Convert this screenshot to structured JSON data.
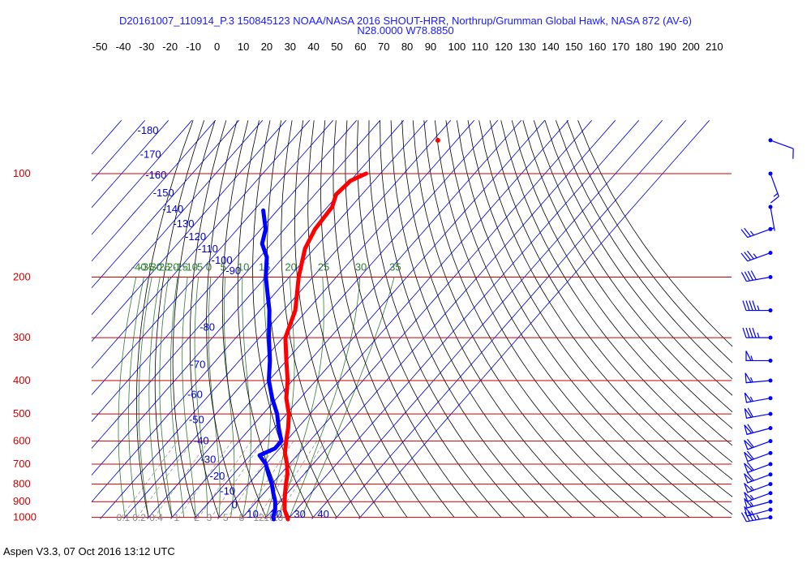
{
  "header": {
    "title": "D20161007_110914_P.3 150845123 NOAA/NASA 2016 SHOUT-HRR, Northrup/Grumman Global Hawk, NASA 872 (AV-6)",
    "location": "N28.0000 W78.8850"
  },
  "footer": {
    "text": "Aspen V3.3, 07 Oct 2016  13:12 UTC"
  },
  "colors": {
    "isobar": "#cc0000",
    "isotherm": "#0000cc",
    "dry_adiabat": "#000000",
    "moist_adiabat": "#2e7d32",
    "mixing_ratio": "#999999",
    "temperature": "#ff0000",
    "dewpoint": "#0000ff",
    "wind_barb": "#0000ff"
  },
  "chart_data": {
    "type": "line",
    "subtype": "skew-T log-p",
    "temperature_ticks": [
      "-50",
      "-40",
      "-30",
      "-20",
      "-10",
      "0",
      "10",
      "20",
      "30",
      "40",
      "50",
      "60",
      "70",
      "80",
      "90",
      "100",
      "110",
      "120",
      "130",
      "140",
      "150",
      "160",
      "170",
      "180",
      "190",
      "200",
      "210"
    ],
    "isotherm_labels": [
      "-180",
      "-170",
      "-160",
      "-150",
      "-140",
      "-130",
      "-120",
      "-110",
      "-100",
      "-90",
      "-80",
      "-70",
      "-60",
      "-50",
      "-40",
      "-30",
      "-20",
      "-10",
      "0",
      "10",
      "20",
      "30",
      "40"
    ],
    "pressure_labels": [
      "100",
      "200",
      "300",
      "400",
      "500",
      "600",
      "700",
      "800",
      "900",
      "1000"
    ],
    "moist_adiabat_labels": [
      "-40",
      "-35",
      "-30",
      "-25",
      "-20",
      "-15",
      "-10",
      "-5",
      "0",
      "5",
      "10",
      "15",
      "20",
      "25",
      "30",
      "35"
    ],
    "mixing_ratio_labels": [
      "0.1",
      "0.2",
      "0.4",
      "1",
      "2",
      "3",
      "5",
      "8",
      "12",
      "16",
      "20"
    ],
    "series": [
      {
        "name": "temperature",
        "points": [
          {
            "p": 100,
            "t": -66
          },
          {
            "p": 105,
            "t": -70
          },
          {
            "p": 115,
            "t": -71
          },
          {
            "p": 125,
            "t": -68
          },
          {
            "p": 145,
            "t": -67
          },
          {
            "p": 165,
            "t": -64
          },
          {
            "p": 200,
            "t": -56
          },
          {
            "p": 250,
            "t": -45
          },
          {
            "p": 300,
            "t": -39
          },
          {
            "p": 350,
            "t": -30
          },
          {
            "p": 400,
            "t": -22
          },
          {
            "p": 450,
            "t": -16
          },
          {
            "p": 500,
            "t": -9
          },
          {
            "p": 550,
            "t": -4
          },
          {
            "p": 600,
            "t": 0
          },
          {
            "p": 650,
            "t": 4
          },
          {
            "p": 700,
            "t": 9
          },
          {
            "p": 750,
            "t": 13
          },
          {
            "p": 800,
            "t": 16
          },
          {
            "p": 850,
            "t": 19
          },
          {
            "p": 900,
            "t": 22
          },
          {
            "p": 950,
            "t": 25
          },
          {
            "p": 1000,
            "t": 29
          },
          {
            "p": 1013,
            "t": 30
          }
        ]
      },
      {
        "name": "dewpoint",
        "points": [
          {
            "p": 128,
            "t": -96
          },
          {
            "p": 145,
            "t": -88
          },
          {
            "p": 160,
            "t": -84
          },
          {
            "p": 175,
            "t": -77
          },
          {
            "p": 200,
            "t": -70
          },
          {
            "p": 250,
            "t": -56
          },
          {
            "p": 300,
            "t": -46
          },
          {
            "p": 350,
            "t": -37
          },
          {
            "p": 400,
            "t": -30
          },
          {
            "p": 450,
            "t": -22
          },
          {
            "p": 500,
            "t": -14
          },
          {
            "p": 550,
            "t": -8
          },
          {
            "p": 600,
            "t": -2
          },
          {
            "p": 630,
            "t": -2
          },
          {
            "p": 660,
            "t": -6
          },
          {
            "p": 700,
            "t": 0
          },
          {
            "p": 750,
            "t": 5
          },
          {
            "p": 800,
            "t": 10
          },
          {
            "p": 850,
            "t": 14
          },
          {
            "p": 900,
            "t": 18
          },
          {
            "p": 950,
            "t": 21
          },
          {
            "p": 1000,
            "t": 23
          },
          {
            "p": 1013,
            "t": 24
          }
        ]
      }
    ],
    "top_point": {
      "p": 80,
      "t": -48
    },
    "winds": [
      {
        "p": 80,
        "dir": 110,
        "spd": 10
      },
      {
        "p": 100,
        "dir": 160,
        "spd": 15
      },
      {
        "p": 125,
        "dir": 170,
        "spd": 5
      },
      {
        "p": 145,
        "dir": 250,
        "spd": 25
      },
      {
        "p": 170,
        "dir": 250,
        "spd": 35
      },
      {
        "p": 200,
        "dir": 260,
        "spd": 40
      },
      {
        "p": 250,
        "dir": 270,
        "spd": 45
      },
      {
        "p": 300,
        "dir": 270,
        "spd": 45
      },
      {
        "p": 350,
        "dir": 270,
        "spd": 55
      },
      {
        "p": 400,
        "dir": 265,
        "spd": 55
      },
      {
        "p": 450,
        "dir": 260,
        "spd": 55
      },
      {
        "p": 500,
        "dir": 260,
        "spd": 60
      },
      {
        "p": 550,
        "dir": 255,
        "spd": 60
      },
      {
        "p": 600,
        "dir": 250,
        "spd": 60
      },
      {
        "p": 650,
        "dir": 250,
        "spd": 60
      },
      {
        "p": 700,
        "dir": 250,
        "spd": 60
      },
      {
        "p": 750,
        "dir": 250,
        "spd": 60
      },
      {
        "p": 800,
        "dir": 250,
        "spd": 55
      },
      {
        "p": 850,
        "dir": 250,
        "spd": 55
      },
      {
        "p": 900,
        "dir": 255,
        "spd": 55
      },
      {
        "p": 950,
        "dir": 255,
        "spd": 50
      },
      {
        "p": 1000,
        "dir": 260,
        "spd": 45
      }
    ]
  }
}
